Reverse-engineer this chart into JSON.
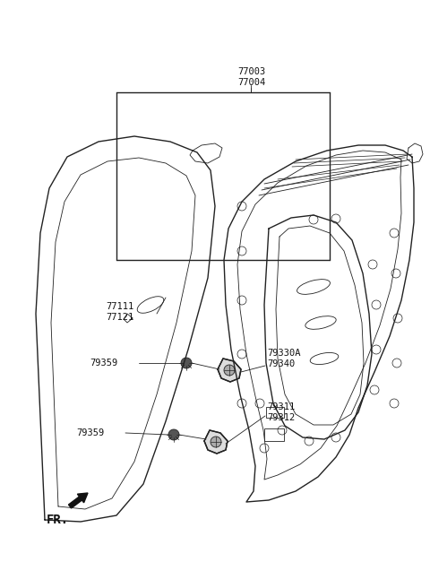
{
  "background_color": "#ffffff",
  "line_color": "#222222",
  "text_color": "#111111",
  "fig_width": 4.8,
  "fig_height": 6.56,
  "dpi": 100,
  "label_77003": "77003\n77004",
  "label_77111": "77111\n77121",
  "label_79330A": "79330A\n79340",
  "label_79359_u": "79359",
  "label_79311": "79311\n79312",
  "label_79359_l": "79359",
  "label_FR": "FR."
}
